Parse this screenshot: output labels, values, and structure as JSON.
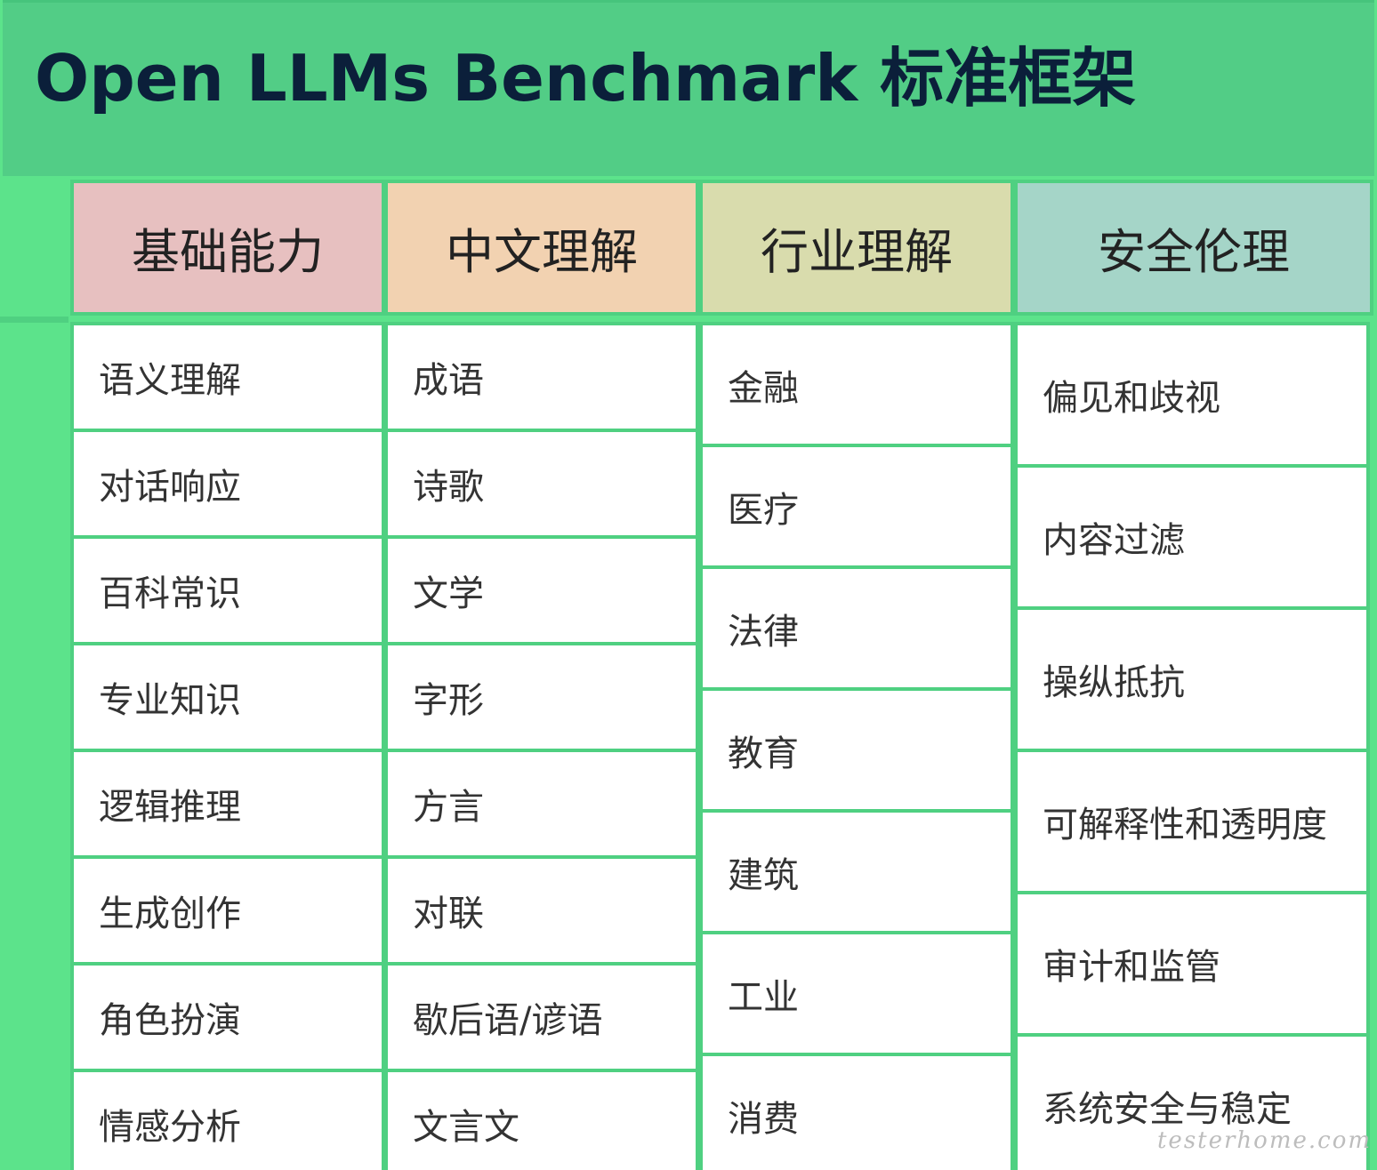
{
  "title": "Open LLMs Benchmark 标准框架",
  "columns": [
    {
      "header": "基础能力",
      "header_color": "#e7c0c0",
      "items": [
        "语义理解",
        "对话响应",
        "百科常识",
        "专业知识",
        "逻辑推理",
        "生成创作",
        "角色扮演",
        "情感分析"
      ]
    },
    {
      "header": "中文理解",
      "header_color": "#f2d2b1",
      "items": [
        "成语",
        "诗歌",
        "文学",
        "字形",
        "方言",
        "对联",
        "歇后语/谚语",
        "文言文"
      ]
    },
    {
      "header": "行业理解",
      "header_color": "#d9dcad",
      "items": [
        "金融",
        "医疗",
        "法律",
        "教育",
        "建筑",
        "工业",
        "消费"
      ]
    },
    {
      "header": "安全伦理",
      "header_color": "#a5d5c8",
      "items": [
        "偏见和歧视",
        "内容过滤",
        "操纵抵抗",
        "可解释性和透明度",
        "审计和监管",
        "系统安全与稳定"
      ]
    }
  ],
  "watermark": "testerhome.com",
  "colors": {
    "title_bg": "#52cd86",
    "grid_line": "#4fd081",
    "title_text": "#0b1f3a"
  }
}
